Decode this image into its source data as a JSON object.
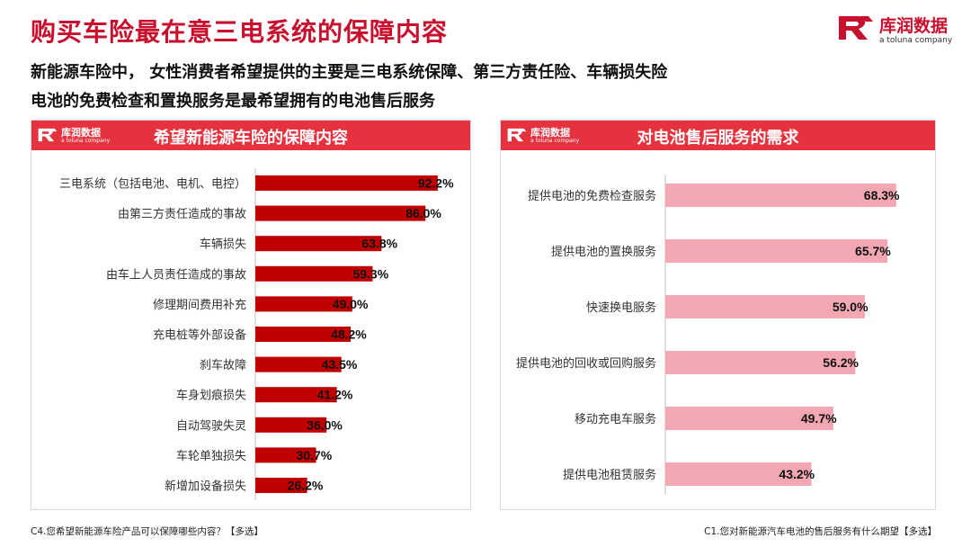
{
  "page": {
    "title": "购买车险最在意三电系统的保障内容",
    "headline_1": "新能源车险中， 女性消费者希望提供的主要是三电系统保障、第三方责任险、车辆损失险",
    "headline_2": "电池的免费检查和置换服务是最希望拥有的电池售后服务"
  },
  "logo": {
    "name": "库润数据",
    "sub": "a toluna company",
    "mark_icon": "r-logo-icon",
    "brand_color": "#c8102e"
  },
  "panels": {
    "left": {
      "title": "希望新能源车险的保障内容",
      "logo_name": "库润数据",
      "logo_sub": "a toluna company"
    },
    "right": {
      "title": "对电池售后服务的需求",
      "logo_name": "库润数据",
      "logo_sub": "a toluna company"
    }
  },
  "footnotes": {
    "left": "C4.您希望新能源车险产品可以保障哪些内容？【多选】",
    "right": "C1.您对新能源汽车电池的售后服务有什么期望【多选】"
  },
  "colors": {
    "header_bg": "#e5323e",
    "left_bar": "#c00000",
    "right_bar": "#f2a7b3"
  },
  "chart_data": [
    {
      "type": "bar",
      "orientation": "horizontal",
      "title": "希望新能源车险的保障内容",
      "categories": [
        "三电系统（包括电池、电机、电控）",
        "由第三方责任造成的事故",
        "车辆损失",
        "由车上人员责任造成的事故",
        "修理期间费用补充",
        "充电桩等外部设备",
        "刹车故障",
        "车身划痕损失",
        "自动驾驶失灵",
        "车轮单独损失",
        "新增加设备损失"
      ],
      "values": [
        92.2,
        86.0,
        63.8,
        59.3,
        49.0,
        48.2,
        43.5,
        41.2,
        36.0,
        30.7,
        26.2
      ],
      "labels": [
        "92.2%",
        "86.0%",
        "63.8%",
        "59.3%",
        "49.0%",
        "48.2%",
        "43.5%",
        "41.2%",
        "36.0%",
        "30.7%",
        "26.2%"
      ],
      "unit": "%",
      "xlim": [
        0,
        100
      ],
      "color": "#c00000"
    },
    {
      "type": "bar",
      "orientation": "horizontal",
      "title": "对电池售后服务的需求",
      "categories": [
        "提供电池的免费检查服务",
        "提供电池的置换服务",
        "快速换电服务",
        "提供电池的回收或回购服务",
        "移动充电车服务",
        "提供电池租赁服务"
      ],
      "values": [
        68.3,
        65.7,
        59.0,
        56.2,
        49.7,
        43.2
      ],
      "labels": [
        "68.3%",
        "65.7%",
        "59.0%",
        "56.2%",
        "49.7%",
        "43.2%"
      ],
      "unit": "%",
      "xlim": [
        0,
        100
      ],
      "color": "#f2a7b3"
    }
  ]
}
